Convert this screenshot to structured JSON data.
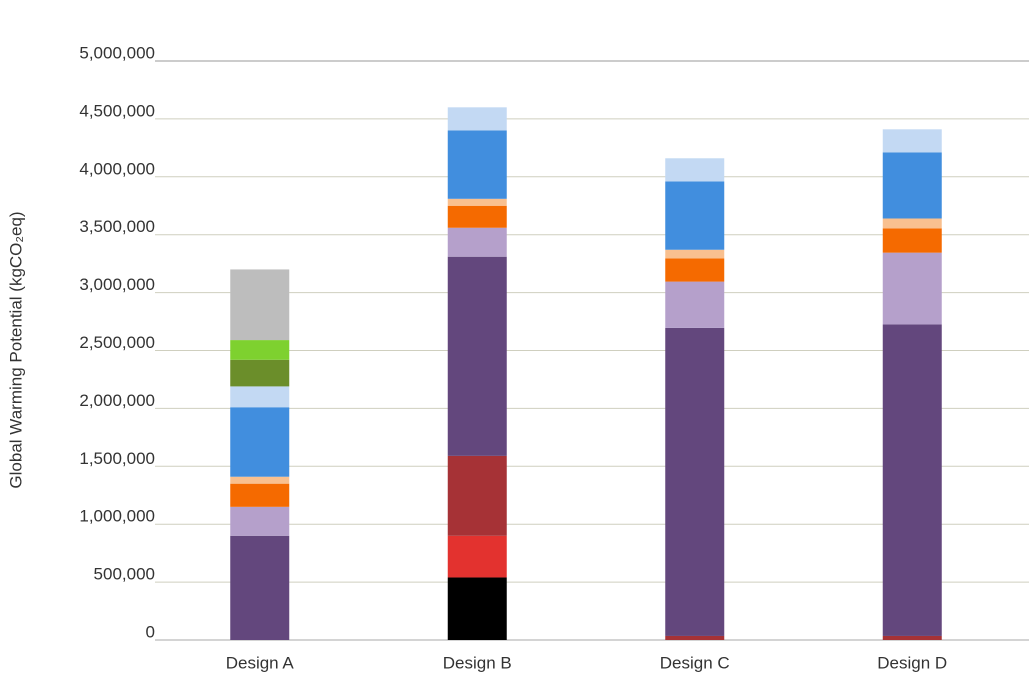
{
  "chart_data": {
    "type": "stacked-bar",
    "y_label": "Global Warming Potential (kgCO₂eq)",
    "categories": [
      "Design A",
      "Design B",
      "Design C",
      "Design D"
    ],
    "series": [
      {
        "color": "#000000",
        "values": [
          0,
          540000,
          0,
          0
        ]
      },
      {
        "color": "#e3322f",
        "values": [
          0,
          360000,
          0,
          0
        ]
      },
      {
        "color": "#a63236",
        "values": [
          0,
          690000,
          35000,
          35000
        ]
      },
      {
        "color": "#63477d",
        "values": [
          900000,
          1720000,
          2660000,
          2690000
        ]
      },
      {
        "color": "#b5a0cb",
        "values": [
          250000,
          250000,
          400000,
          620000
        ]
      },
      {
        "color": "#f56a00",
        "values": [
          200000,
          190000,
          200000,
          210000
        ]
      },
      {
        "color": "#f9c08f",
        "values": [
          60000,
          60000,
          75000,
          85000
        ]
      },
      {
        "color": "#418ede",
        "values": [
          600000,
          590000,
          590000,
          570000
        ]
      },
      {
        "color": "#c3d9f3",
        "values": [
          180000,
          200000,
          200000,
          200000
        ]
      },
      {
        "color": "#6b8e2a",
        "values": [
          230000,
          0,
          0,
          0
        ]
      },
      {
        "color": "#7ed12f",
        "values": [
          170000,
          0,
          0,
          0
        ]
      },
      {
        "color": "#bdbdbd",
        "values": [
          610000,
          0,
          0,
          0
        ]
      }
    ],
    "ylim": [
      0,
      5000000
    ],
    "yticks": [
      0,
      {
        "value": 500000,
        "label": "500,000"
      },
      {
        "value": 1000000,
        "label": "1,000,000"
      },
      {
        "value": 1500000,
        "label": "1,500,000"
      },
      {
        "value": 2000000,
        "label": "2,000,000"
      },
      {
        "value": 2500000,
        "label": "2,500,000"
      },
      {
        "value": 3000000,
        "label": "3,000,000"
      },
      {
        "value": 3500000,
        "label": "3,500,000"
      },
      {
        "value": 4000000,
        "label": "4,000,000"
      },
      {
        "value": 4500000,
        "label": "4,500,000"
      },
      {
        "value": 5000000,
        "label": "5,000,000"
      }
    ],
    "grid": true
  }
}
